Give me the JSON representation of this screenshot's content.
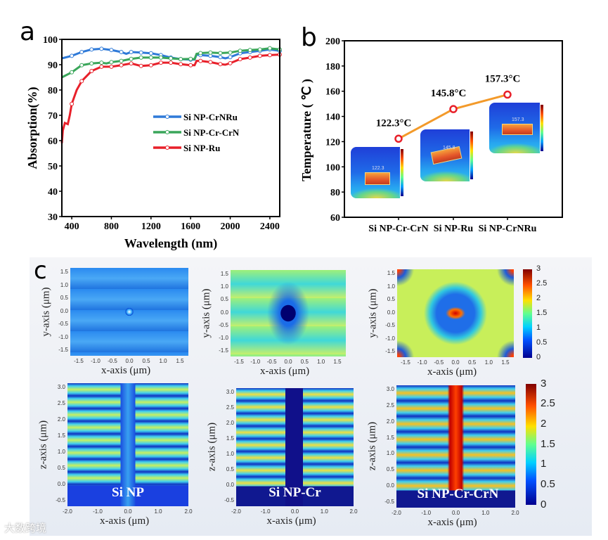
{
  "panel_labels": {
    "a": "a",
    "b": "b",
    "c": "c"
  },
  "chart_data": [
    {
      "type": "line",
      "title": "",
      "xlabel": "Wavelength (nm)",
      "ylabel": "Absorption(%)",
      "xlim": [
        300,
        2500
      ],
      "ylim": [
        30,
        100
      ],
      "xticks": [
        400,
        800,
        1200,
        1600,
        2000,
        2400
      ],
      "yticks": [
        30,
        40,
        50,
        60,
        70,
        80,
        90,
        100
      ],
      "legend_position": "center-right",
      "series": [
        {
          "name": "Si NP-CrNRu",
          "color": "#2f7ad8",
          "x": [
            300,
            400,
            500,
            600,
            700,
            800,
            900,
            950,
            1000,
            1100,
            1200,
            1300,
            1400,
            1500,
            1600,
            1640,
            1660,
            1700,
            1800,
            1900,
            1950,
            2000,
            2100,
            2200,
            2300,
            2400,
            2500
          ],
          "y": [
            92.5,
            93.5,
            95,
            96,
            96.3,
            95.8,
            95,
            94.3,
            95,
            94.8,
            94.5,
            93.8,
            92.8,
            92.2,
            92,
            92,
            94,
            93.8,
            93.5,
            93,
            92.5,
            93,
            94.5,
            95,
            95.5,
            96,
            95.5
          ]
        },
        {
          "name": "Si NP-Cr-CrN",
          "color": "#3aa65a",
          "x": [
            300,
            400,
            500,
            600,
            700,
            750,
            800,
            900,
            1000,
            1100,
            1200,
            1300,
            1400,
            1500,
            1600,
            1640,
            1660,
            1700,
            1800,
            1900,
            2000,
            2100,
            2200,
            2300,
            2400,
            2500
          ],
          "y": [
            85,
            87,
            89.8,
            90.5,
            90.8,
            90.5,
            91,
            91.5,
            92.3,
            92.8,
            92.8,
            92.8,
            92.5,
            92.2,
            92.3,
            92.2,
            94.3,
            94.6,
            94.8,
            94.6,
            94.8,
            95.5,
            95.8,
            96,
            96.5,
            96
          ]
        },
        {
          "name": "Si NP-Ru",
          "color": "#e8202a",
          "x": [
            300,
            310,
            330,
            360,
            380,
            400,
            450,
            500,
            600,
            700,
            800,
            900,
            1000,
            1100,
            1200,
            1300,
            1400,
            1500,
            1600,
            1640,
            1660,
            1700,
            1800,
            1900,
            1950,
            2000,
            2100,
            2200,
            2300,
            2400,
            2500
          ],
          "y": [
            59,
            64,
            67,
            66.5,
            70,
            74.5,
            80,
            83.5,
            87.5,
            89.2,
            89.2,
            89.8,
            90.5,
            89.5,
            89.8,
            90.8,
            90.8,
            90.2,
            89.8,
            89.8,
            91.5,
            91.5,
            91,
            90.2,
            90,
            90.6,
            92.2,
            92.8,
            93.5,
            93.8,
            94
          ]
        }
      ]
    },
    {
      "type": "line",
      "title": "",
      "xlabel": "",
      "ylabel": "Temperature ( ℃ )",
      "ylim": [
        60,
        200
      ],
      "yticks": [
        60,
        80,
        100,
        120,
        140,
        160,
        180,
        200
      ],
      "categories": [
        "Si NP-Cr-CrN",
        "Si NP-Ru",
        "Si NP-CrNRu"
      ],
      "values": [
        122.3,
        145.8,
        157.3
      ],
      "data_labels": [
        "122.3°C",
        "145.8°C",
        "157.3°C"
      ],
      "thermal_image_readouts": [
        "122.3",
        "145.8",
        "157.3"
      ],
      "line_color": "#f39a2a",
      "marker_color": "#e8202a"
    },
    {
      "type": "heatmap",
      "colorbar": {
        "min": 0,
        "max": 3,
        "ticks": [
          "3",
          "2.5",
          "2",
          "1.5",
          "1",
          "0.5",
          "0"
        ]
      },
      "top_row": {
        "xlabel": "x-axis (μm)",
        "ylabel": "y-axis (μm)",
        "xticks": [
          "-1.5",
          "-1.0",
          "-0.5",
          "0.0",
          "0.5",
          "1.0",
          "1.5"
        ],
        "yticks": [
          "1.5",
          "1.0",
          "0.5",
          "0.0",
          "-0.5",
          "-1.0",
          "-1.5"
        ]
      },
      "bottom_row": {
        "xlabel": "x-axis (μm)",
        "ylabel": "z-axis (μm)",
        "xticks": [
          "-2.0",
          "-1.0",
          "0.0",
          "1.0",
          "2.0"
        ],
        "yticks": [
          "3.0",
          "2.5",
          "2.0",
          "1.5",
          "1.0",
          "0.5",
          "0.0",
          "-0.5"
        ],
        "samples": [
          "Si NP",
          "Si NP-Cr",
          "Si NP-Cr-CrN"
        ]
      }
    }
  ],
  "watermark": "大数跨境"
}
